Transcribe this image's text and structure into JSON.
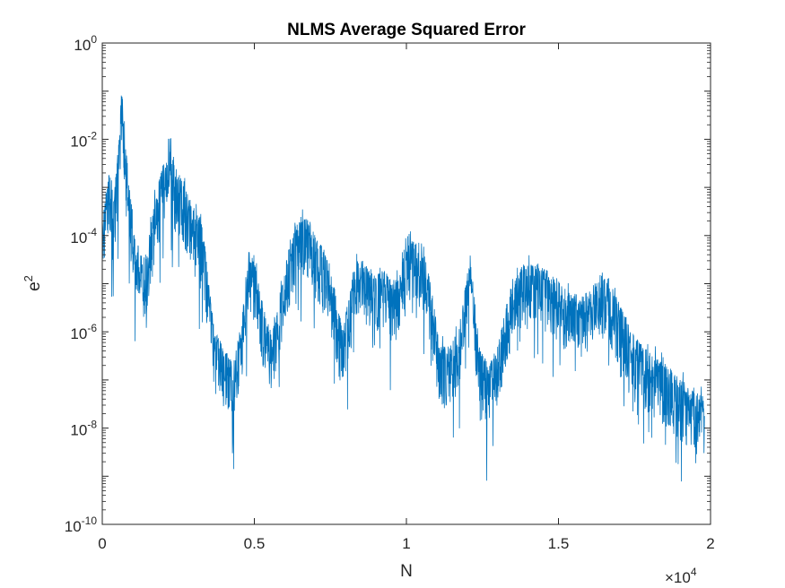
{
  "chart_data": {
    "type": "line",
    "title": "NLMS Average Squared Error",
    "xlabel": "N",
    "ylabel_base": "e",
    "ylabel_exp": "2",
    "x_multiplier": {
      "prefix": "×10",
      "exp": "4"
    },
    "xlim": [
      0,
      20000
    ],
    "ylim": [
      1e-10,
      1
    ],
    "yscale": "log",
    "grid": false,
    "series_color": "#0072BD",
    "x_ticks": [
      {
        "value": 0,
        "label": "0"
      },
      {
        "value": 5000,
        "label": "0.5"
      },
      {
        "value": 10000,
        "label": "1"
      },
      {
        "value": 15000,
        "label": "1.5"
      },
      {
        "value": 20000,
        "label": "2"
      }
    ],
    "y_ticks": [
      {
        "value": 1e-10,
        "base": "10",
        "exp": "-10"
      },
      {
        "value": 1e-08,
        "base": "10",
        "exp": "-8"
      },
      {
        "value": 1e-06,
        "base": "10",
        "exp": "-6"
      },
      {
        "value": 0.0001,
        "base": "10",
        "exp": "-4"
      },
      {
        "value": 0.01,
        "base": "10",
        "exp": "-2"
      },
      {
        "value": 1,
        "base": "10",
        "exp": "0"
      }
    ],
    "series": [
      {
        "envelope_points": [
          [
            0,
            0.0002
          ],
          [
            200,
            0.002
          ],
          [
            400,
            0.001
          ],
          [
            550,
            0.01
          ],
          [
            650,
            0.18
          ],
          [
            750,
            0.01
          ],
          [
            900,
            0.001
          ],
          [
            1100,
            0.0001
          ],
          [
            1300,
            3e-05
          ],
          [
            1500,
            5e-05
          ],
          [
            1700,
            0.0005
          ],
          [
            2000,
            0.003
          ],
          [
            2200,
            0.012
          ],
          [
            2400,
            0.003
          ],
          [
            2700,
            0.001
          ],
          [
            3000,
            0.0004
          ],
          [
            3300,
            0.0002
          ],
          [
            3500,
            1e-05
          ],
          [
            3700,
            1e-06
          ],
          [
            4000,
            5e-07
          ],
          [
            4300,
            2e-07
          ],
          [
            4600,
            2e-06
          ],
          [
            4800,
            5e-05
          ],
          [
            5000,
            3e-05
          ],
          [
            5300,
            3e-06
          ],
          [
            5600,
            1e-06
          ],
          [
            5900,
            1e-05
          ],
          [
            6200,
            0.0001
          ],
          [
            6500,
            0.00025
          ],
          [
            6800,
            0.0002
          ],
          [
            7000,
            0.0001
          ],
          [
            7300,
            5e-05
          ],
          [
            7600,
            1e-05
          ],
          [
            7900,
            1e-06
          ],
          [
            8100,
            5e-06
          ],
          [
            8300,
            3e-05
          ],
          [
            8600,
            3e-05
          ],
          [
            9000,
            1.5e-05
          ],
          [
            9300,
            2e-05
          ],
          [
            9600,
            1e-05
          ],
          [
            9900,
            5e-05
          ],
          [
            10200,
            8e-05
          ],
          [
            10500,
            7e-05
          ],
          [
            10800,
            1e-05
          ],
          [
            11100,
            5e-07
          ],
          [
            11400,
            5e-07
          ],
          [
            11700,
            1e-06
          ],
          [
            12100,
            4e-05
          ],
          [
            12400,
            5e-07
          ],
          [
            12700,
            2e-07
          ],
          [
            13000,
            5e-07
          ],
          [
            13300,
            4e-06
          ],
          [
            13600,
            2e-05
          ],
          [
            14000,
            2.5e-05
          ],
          [
            14400,
            2.5e-05
          ],
          [
            14800,
            1.5e-05
          ],
          [
            15200,
            8e-06
          ],
          [
            15600,
            5e-06
          ],
          [
            16000,
            7e-06
          ],
          [
            16400,
            1.5e-05
          ],
          [
            16700,
            1e-05
          ],
          [
            17000,
            4e-06
          ],
          [
            17400,
            1e-06
          ],
          [
            17800,
            5e-07
          ],
          [
            18200,
            3e-07
          ],
          [
            18600,
            2e-07
          ],
          [
            19000,
            1e-07
          ],
          [
            19400,
            6e-08
          ],
          [
            19800,
            5e-08
          ]
        ],
        "spread_decades": 1.3,
        "noise_seed": 7
      }
    ]
  }
}
